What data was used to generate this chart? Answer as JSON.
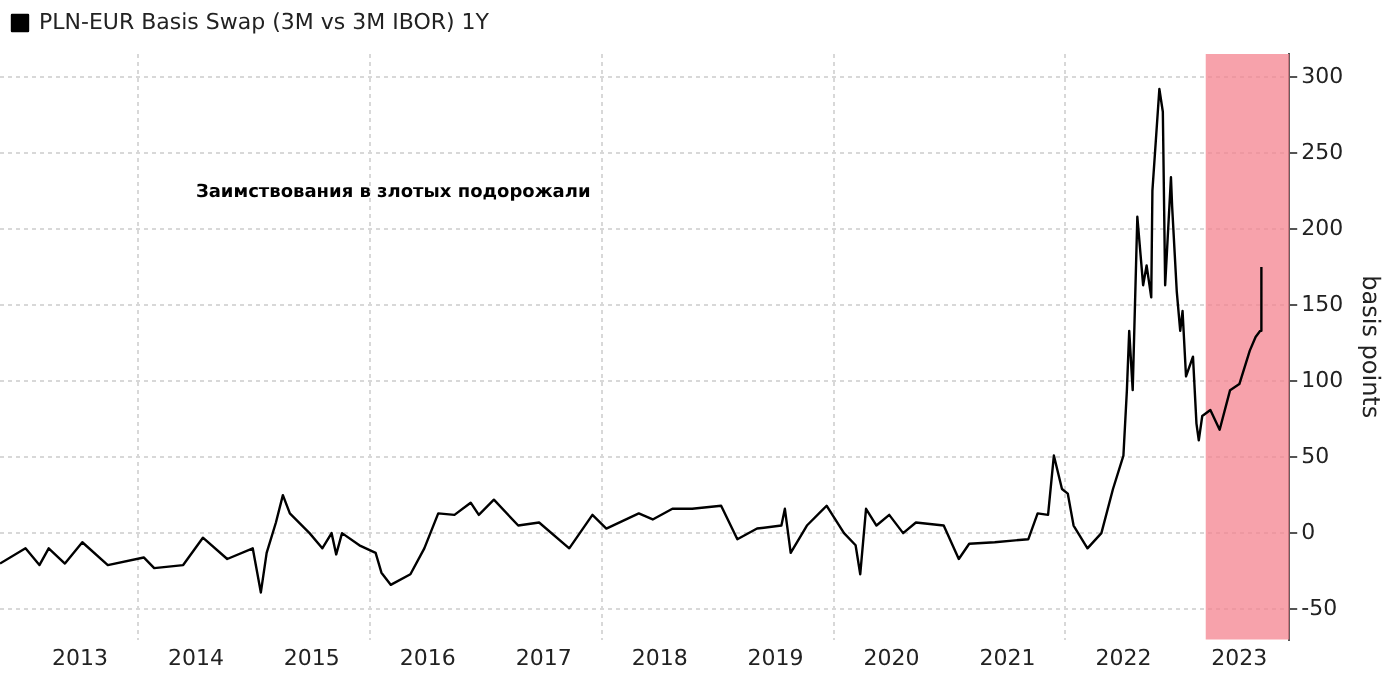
{
  "chart_data": {
    "type": "line",
    "ylabel": "basis points",
    "legend": "top left",
    "grid": true,
    "marker": "none",
    "line_style": "solid",
    "annotations": [
      "Заимствования в злотых подорожали"
    ],
    "xlim": [
      2012.81,
      2023.93
    ],
    "xticks": [
      {
        "value": 2013.5,
        "label": "2013"
      },
      {
        "value": 2014,
        "label": null
      },
      {
        "value": 2014.5,
        "label": "2014"
      },
      {
        "value": 2015.5,
        "label": "2015"
      },
      {
        "value": 2016,
        "label": null
      },
      {
        "value": 2016.5,
        "label": "2016"
      },
      {
        "value": 2017.5,
        "label": "2017"
      },
      {
        "value": 2018,
        "label": null
      },
      {
        "value": 2018.5,
        "label": "2018"
      },
      {
        "value": 2019.5,
        "label": "2019"
      },
      {
        "value": 2020,
        "label": null
      },
      {
        "value": 2020.5,
        "label": "2020"
      },
      {
        "value": 2021.5,
        "label": "2021"
      },
      {
        "value": 2022,
        "label": null
      },
      {
        "value": 2022.5,
        "label": "2022"
      },
      {
        "value": 2023.5,
        "label": "2023"
      }
    ],
    "ylim": [
      -70,
      315
    ],
    "yticks": [
      -50,
      0,
      50,
      100,
      150,
      200,
      250,
      300
    ],
    "bands": [
      {
        "axis": "x",
        "from": 2023.21,
        "to": 2023.93,
        "color": "#f4838f"
      }
    ],
    "series": [
      {
        "name": "PLN-EUR Basis Swap (3M vs 3M IBOR) 1Y",
        "color": "#000000",
        "x": [
          2012.81,
          2013.03,
          2013.15,
          2013.23,
          2013.37,
          2013.52,
          2013.74,
          2014.05,
          2014.14,
          2014.39,
          2014.56,
          2014.77,
          2014.99,
          2015.06,
          2015.11,
          2015.19,
          2015.25,
          2015.31,
          2015.48,
          2015.59,
          2015.67,
          2015.71,
          2015.76,
          2015.91,
          2016.05,
          2016.1,
          2016.18,
          2016.35,
          2016.47,
          2016.59,
          2016.73,
          2016.87,
          2016.94,
          2017.07,
          2017.28,
          2017.46,
          2017.72,
          2017.92,
          2018.04,
          2018.32,
          2018.44,
          2018.61,
          2018.78,
          2019.03,
          2019.17,
          2019.34,
          2019.55,
          2019.58,
          2019.63,
          2019.77,
          2019.94,
          2020.09,
          2020.19,
          2020.23,
          2020.28,
          2020.37,
          2020.48,
          2020.6,
          2020.71,
          2020.95,
          2021.08,
          2021.17,
          2021.39,
          2021.68,
          2021.76,
          2021.85,
          2021.9,
          2021.97,
          2022.02,
          2022.07,
          2022.19,
          2022.31,
          2022.41,
          2022.5,
          2022.53,
          2022.55,
          2022.58,
          2022.62,
          2022.67,
          2022.7,
          2022.74,
          2022.75,
          2022.81,
          2022.84,
          2022.86,
          2022.91,
          2022.92,
          2022.96,
          2022.99,
          2023.01,
          2023.04,
          2023.1,
          2023.13,
          2023.15,
          2023.18,
          2023.25,
          2023.33,
          2023.42,
          2023.5,
          2023.59,
          2023.64,
          2023.68,
          2023.69
        ],
        "values": [
          -20,
          -10,
          -21,
          -10,
          -20,
          -6,
          -21,
          -16,
          -23,
          -21,
          -3,
          -17,
          -10,
          -39,
          -13,
          7,
          25,
          13,
          0,
          -10,
          0,
          -14,
          0,
          -8,
          -13,
          -26,
          -34,
          -27,
          -10,
          13,
          12,
          20,
          12,
          22,
          5,
          7,
          -10,
          12,
          3,
          13,
          9,
          16,
          16,
          18,
          -4,
          3,
          5,
          16,
          -13,
          5,
          18,
          0,
          -8,
          -27,
          16,
          5,
          12,
          0,
          7,
          5,
          -17,
          -7,
          -6,
          -4,
          13,
          12,
          51,
          29,
          26,
          5,
          -10,
          0,
          29,
          51,
          94,
          133,
          94,
          208,
          163,
          176,
          155,
          225,
          292,
          277,
          163,
          234,
          215,
          159,
          133,
          146,
          103,
          116,
          72,
          61,
          77,
          81,
          68,
          94,
          98,
          120,
          129,
          133,
          175
        ]
      }
    ]
  }
}
